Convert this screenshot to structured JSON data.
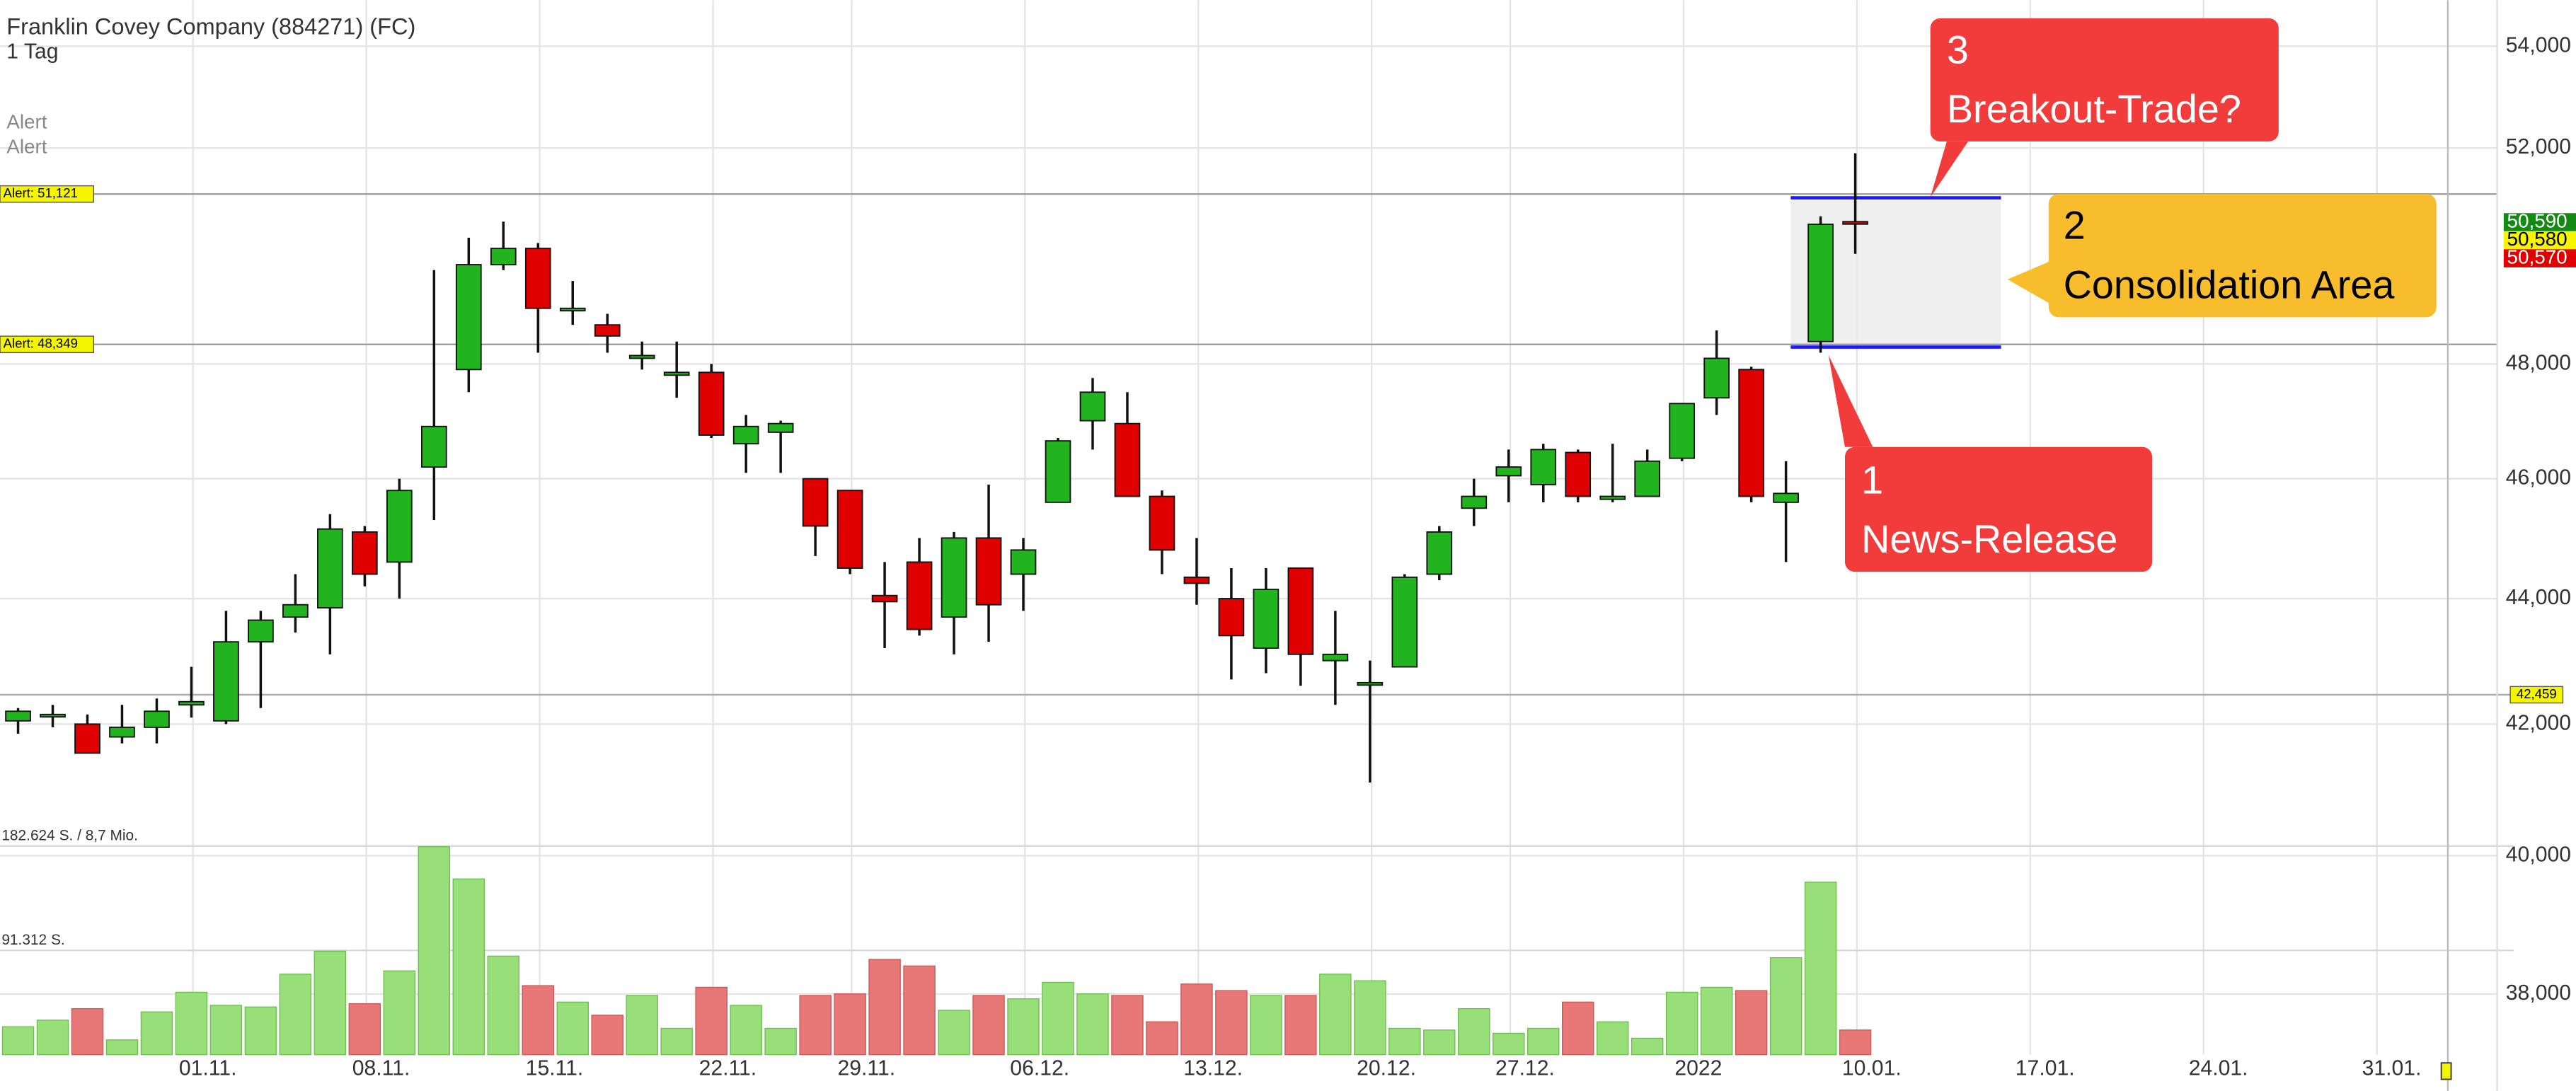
{
  "chart_data": {
    "type": "candlestick",
    "title": "Franklin Covey Company (884271) (FC)",
    "subtitle": "1 Tag",
    "alert_texts": [
      "Alert",
      "Alert"
    ],
    "log_scale": true,
    "ylim": [
      37200,
      54930
    ],
    "yticks": [
      {
        "value": 38000,
        "label": "38,000"
      },
      {
        "value": 40000,
        "label": "40,000"
      },
      {
        "value": 42000,
        "label": "42,000"
      },
      {
        "value": 44000,
        "label": "44,000"
      },
      {
        "value": 46000,
        "label": "46,000"
      },
      {
        "value": 48000,
        "label": "48,000"
      },
      {
        "value": 52000,
        "label": "52,000"
      },
      {
        "value": 54000,
        "label": "54,000"
      }
    ],
    "grid": true,
    "up_color": "#22b41e",
    "down_color": "#e00000",
    "volume_up_color": "#98df7a",
    "volume_down_color": "#e87878",
    "volume_ylim": [
      0,
      182624
    ],
    "volume_ticks": [
      {
        "value": 182624,
        "label": "182.624 S. / 8,7 Mio."
      },
      {
        "value": 91312,
        "label": "91.312 S."
      }
    ],
    "categories": [
      null,
      null,
      null,
      null,
      null,
      "01.11.",
      null,
      null,
      null,
      null,
      "08.11.",
      null,
      null,
      null,
      null,
      "15.11.",
      null,
      null,
      null,
      null,
      "22.11.",
      null,
      null,
      null,
      "29.11.",
      null,
      null,
      null,
      null,
      "06.12.",
      null,
      null,
      null,
      null,
      "13.12.",
      null,
      null,
      null,
      null,
      "20.12.",
      null,
      null,
      null,
      "27.12.",
      null,
      null,
      null,
      null,
      "2022",
      null,
      null,
      null,
      null,
      "10.01.",
      null,
      null,
      null,
      null,
      "17.01.",
      null,
      null,
      null,
      null,
      "24.01.",
      null,
      null,
      null,
      null,
      "31.01."
    ],
    "open": [
      42050,
      42150,
      42000,
      41800,
      41950,
      42300,
      42050,
      43300,
      43700,
      43850,
      45100,
      44600,
      46200,
      47900,
      49800,
      50100,
      49000,
      48700,
      48100,
      47800,
      47850,
      46600,
      46800,
      46000,
      45800,
      44050,
      44600,
      43700,
      45000,
      44400,
      45600,
      47000,
      46950,
      45700,
      44350,
      44000,
      43200,
      44500,
      43000,
      42650,
      42900,
      44400,
      45500,
      46050,
      45900,
      46450,
      45650,
      45700,
      46350,
      47400,
      47900,
      45600,
      48400,
      50600,
      null,
      null,
      null,
      null,
      null,
      null,
      null,
      null,
      null,
      null,
      null,
      null,
      null,
      null,
      null
    ],
    "high": [
      42250,
      42300,
      42150,
      42300,
      42400,
      42900,
      43800,
      43800,
      44400,
      45400,
      45200,
      46000,
      49700,
      50300,
      50600,
      50200,
      49500,
      48900,
      48400,
      48400,
      48000,
      47100,
      47000,
      46000,
      45800,
      44600,
      45000,
      45100,
      45900,
      45000,
      46700,
      47750,
      47500,
      45800,
      45000,
      44500,
      44500,
      44500,
      43800,
      43000,
      44400,
      45200,
      46000,
      46500,
      46600,
      46500,
      46600,
      46500,
      47300,
      48600,
      47950,
      46300,
      50700,
      51900,
      null,
      null,
      null,
      null,
      null,
      null,
      null,
      null,
      null,
      null,
      null,
      null,
      null,
      null,
      null
    ],
    "low": [
      41850,
      41950,
      41550,
      41700,
      41700,
      42100,
      42000,
      42250,
      43450,
      43100,
      44200,
      44000,
      45300,
      47500,
      49700,
      48200,
      48700,
      48200,
      47900,
      47400,
      46700,
      46100,
      46100,
      44700,
      44400,
      43200,
      43400,
      43100,
      43300,
      43800,
      45600,
      46500,
      45700,
      44400,
      43900,
      42700,
      42800,
      42600,
      42300,
      41100,
      42900,
      44300,
      45200,
      45600,
      45600,
      45600,
      45600,
      45700,
      46300,
      47100,
      45600,
      44600,
      48200,
      50000,
      null,
      null,
      null,
      null,
      null,
      null,
      null,
      null,
      null,
      null,
      null,
      null,
      null,
      null,
      null
    ],
    "close": [
      42200,
      42150,
      41550,
      41950,
      42200,
      42350,
      43300,
      43650,
      43900,
      45150,
      44400,
      45800,
      46900,
      49800,
      50100,
      49000,
      49000,
      48500,
      48150,
      47850,
      46750,
      46900,
      46950,
      45200,
      44500,
      43950,
      43500,
      45000,
      43900,
      44800,
      46650,
      47500,
      45700,
      44800,
      44250,
      43400,
      44150,
      43100,
      43100,
      42650,
      44350,
      45100,
      45700,
      46200,
      46500,
      45700,
      45700,
      46300,
      47300,
      48100,
      45700,
      45750,
      50550,
      50580,
      null,
      null,
      null,
      null,
      null,
      null,
      null,
      null,
      null,
      null,
      null,
      null,
      null,
      null,
      null
    ],
    "volume": [
      24450,
      30200,
      40260,
      12940,
      37390,
      54640,
      43140,
      41700,
      70460,
      90590,
      44580,
      73340,
      182000,
      153860,
      86280,
      60400,
      46020,
      34510,
      51770,
      23010,
      58960,
      43140,
      23010,
      51770,
      53210,
      83400,
      77650,
      38830,
      51770,
      48890,
      63270,
      53210,
      51770,
      28760,
      61830,
      56080,
      51770,
      51770,
      70460,
      64710,
      23010,
      21570,
      40260,
      18690,
      23010,
      46020,
      28760,
      14380,
      54640,
      58960,
      56080,
      84840,
      150990,
      21570,
      null,
      null,
      null,
      null,
      null,
      null,
      null,
      null,
      null,
      null,
      null,
      null,
      null,
      null,
      null
    ],
    "alert_lines": [
      {
        "value": 51121,
        "label": "Alert: 51,121"
      },
      {
        "value": 48349,
        "label": "Alert: 48,349"
      }
    ],
    "price_line": {
      "value": 42459,
      "label": "42,459"
    },
    "last_prices": [
      {
        "value": 50590,
        "label": "50,590",
        "color": "#138a13",
        "text_color": "#ffffff"
      },
      {
        "value": 50580,
        "label": "50,580",
        "color": "#f5f500",
        "text_color": "#000000"
      },
      {
        "value": 50570,
        "label": "50,570",
        "color": "#e00000",
        "text_color": "#ffffff"
      }
    ],
    "consolidation": {
      "top": 51050,
      "bottom": 48300,
      "color": "#1a1aff"
    },
    "annotations": [
      {
        "lines": [
          "3",
          "Breakout-Trade?"
        ]
      },
      {
        "lines": [
          "2",
          "Consolidation Area"
        ]
      },
      {
        "lines": [
          "1",
          "News-Release"
        ]
      }
    ]
  }
}
